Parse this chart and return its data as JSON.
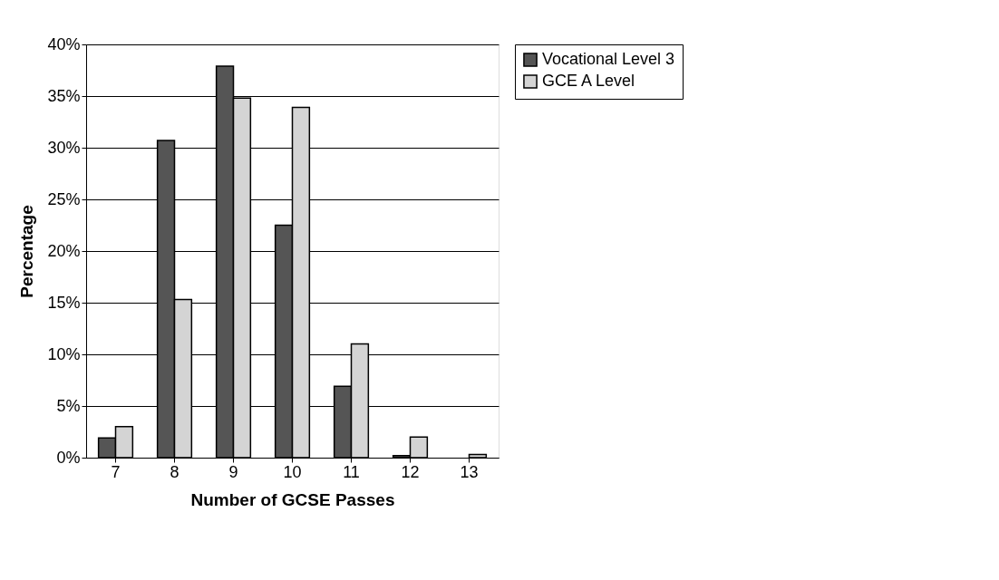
{
  "chart_data": {
    "type": "bar",
    "xlabel": "Number of GCSE Passes",
    "ylabel": "Percentage",
    "categories": [
      "7",
      "8",
      "9",
      "10",
      "11",
      "12",
      "13"
    ],
    "series": [
      {
        "name": "Vocational Level 3",
        "color": "#555555",
        "values": [
          1.9,
          30.7,
          37.9,
          22.5,
          6.9,
          0.2,
          null
        ]
      },
      {
        "name": "GCE A Level",
        "color": "#d4d4d4",
        "values": [
          3.0,
          15.3,
          34.8,
          33.9,
          11.0,
          2.0,
          0.3
        ]
      }
    ],
    "ylim": [
      0,
      40
    ],
    "yticks": [
      {
        "value": 0,
        "label": "0%"
      },
      {
        "value": 5,
        "label": "5%"
      },
      {
        "value": 10,
        "label": "10%"
      },
      {
        "value": 15,
        "label": "15%"
      },
      {
        "value": 20,
        "label": "20%"
      },
      {
        "value": 25,
        "label": "25%"
      },
      {
        "value": 30,
        "label": "30%"
      },
      {
        "value": 35,
        "label": "35%"
      },
      {
        "value": 40,
        "label": "40%"
      }
    ],
    "grid": "y",
    "legend": "right"
  }
}
